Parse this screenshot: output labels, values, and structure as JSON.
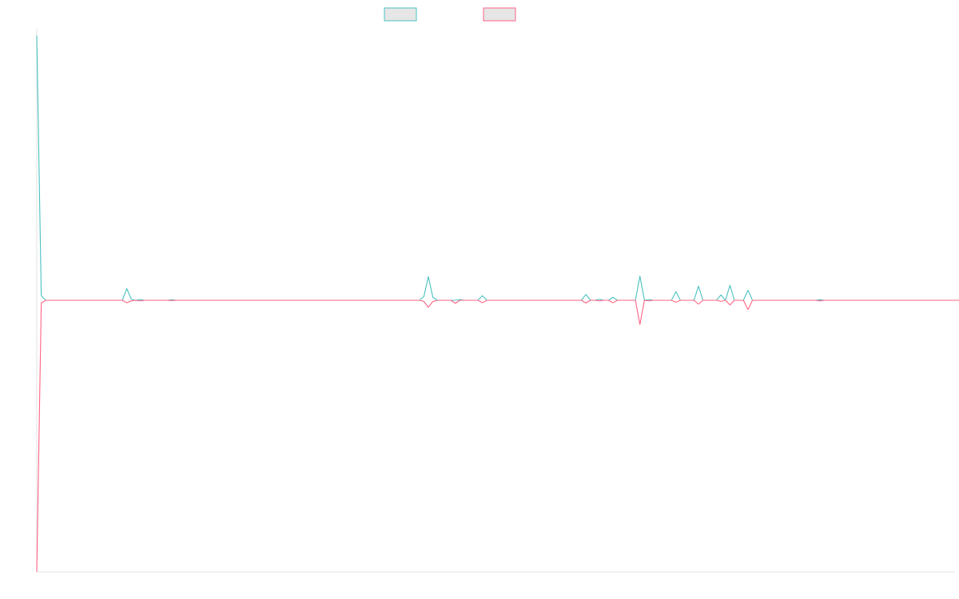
{
  "chart_data": {
    "type": "line",
    "title": "",
    "xlabel": "",
    "ylabel": "",
    "grid": false,
    "legend_position": "top-center",
    "x_count": 205,
    "ylim": [
      -100,
      100
    ],
    "series": [
      {
        "name": "",
        "color": "#4bc0c0",
        "fill": "none",
        "values": [
          97.5,
          1.7,
          0,
          0,
          0,
          0,
          0,
          0,
          0,
          0,
          0,
          0,
          0,
          0,
          0,
          0,
          0,
          0,
          0,
          0,
          4.3,
          0.4,
          0,
          0.3,
          0,
          0,
          0,
          0,
          0,
          0,
          0.2,
          0,
          0,
          0,
          0,
          0,
          0,
          0,
          0,
          0,
          0,
          0,
          0,
          0,
          0,
          0,
          0,
          0,
          0,
          0,
          0,
          0,
          0,
          0,
          0,
          0,
          0,
          0,
          0,
          0,
          0,
          0,
          0,
          0,
          0,
          0,
          0,
          0,
          0,
          0,
          0,
          0,
          0,
          0,
          0,
          0,
          0,
          0,
          0,
          0,
          0,
          0,
          0,
          0,
          0,
          0,
          1.4,
          8.7,
          1.1,
          0,
          0,
          0,
          0,
          0,
          0.3,
          0,
          0,
          0,
          0,
          1.7,
          0,
          0,
          0,
          0,
          0,
          0,
          0,
          0,
          0,
          0,
          0,
          0,
          0,
          0,
          0,
          0,
          0,
          0,
          0,
          0,
          0,
          0,
          2.2,
          0,
          0,
          0.4,
          0,
          0,
          1.1,
          0,
          0,
          0,
          0,
          0,
          8.9,
          0,
          0.3,
          0,
          0,
          0,
          0,
          0,
          3.2,
          0,
          0,
          0,
          0,
          5.2,
          0,
          0,
          0,
          0,
          2.0,
          0,
          5.5,
          0,
          0,
          0,
          3.7,
          0,
          0,
          0,
          0,
          0,
          0,
          0,
          0,
          0,
          0,
          0,
          0,
          0,
          0,
          0,
          0.2,
          0,
          0,
          0,
          0,
          0,
          0,
          0,
          0,
          0,
          0,
          0,
          0,
          0,
          0,
          0,
          0,
          0,
          0,
          0,
          0,
          0,
          0,
          0,
          0,
          0,
          0,
          0,
          0,
          0,
          0,
          0,
          0,
          0,
          0,
          0,
          0,
          0,
          0,
          0,
          0
        ]
      },
      {
        "name": "",
        "color": "#ff6384",
        "fill": "none",
        "values": [
          -100,
          -1.0,
          0,
          0,
          0,
          0,
          0,
          0,
          0,
          0,
          0,
          0,
          0,
          0,
          0,
          0,
          0,
          0,
          0,
          0,
          -0.9,
          -0.2,
          0,
          -0.2,
          0,
          0,
          0,
          0,
          0,
          0,
          -0.1,
          0,
          0,
          0,
          0,
          0,
          0,
          0,
          0,
          0,
          0,
          0,
          0,
          0,
          0,
          0,
          0,
          0,
          0,
          0,
          0,
          0,
          0,
          0,
          0,
          0,
          0,
          0,
          0,
          0,
          0,
          0,
          0,
          0,
          0,
          0,
          0,
          0,
          0,
          0,
          0,
          0,
          0,
          0,
          0,
          0,
          0,
          0,
          0,
          0,
          0,
          0,
          0,
          0,
          0,
          0,
          -0.4,
          -2.6,
          -0.4,
          0,
          0,
          0,
          0,
          -1.1,
          0,
          0,
          0,
          0,
          0,
          -0.9,
          0,
          0,
          0,
          0,
          0,
          0,
          0,
          0,
          0,
          0,
          0,
          0,
          0,
          0,
          0,
          0,
          0,
          0,
          0,
          0,
          0,
          0,
          -1.0,
          0,
          0,
          -0.2,
          0,
          0,
          -0.9,
          0,
          0,
          0,
          0,
          0,
          -8.9,
          0,
          -0.2,
          0,
          0,
          0,
          0,
          0,
          -0.7,
          0,
          0,
          0,
          0,
          -1.4,
          0,
          0,
          0,
          0,
          -0.4,
          0,
          -1.7,
          0,
          0,
          0,
          -3.4,
          0,
          0,
          0,
          0,
          0,
          0,
          0,
          0,
          0,
          0,
          0,
          0,
          0,
          0,
          0,
          -0.2,
          0,
          0,
          0,
          0,
          0,
          0,
          0,
          0,
          0,
          0,
          0,
          0,
          0,
          0,
          0,
          0,
          0,
          0,
          0,
          0,
          0,
          0,
          0,
          0,
          0,
          0,
          0,
          0,
          0,
          0,
          0,
          0,
          0,
          0,
          0,
          0,
          0,
          0,
          0,
          0
        ]
      }
    ]
  }
}
